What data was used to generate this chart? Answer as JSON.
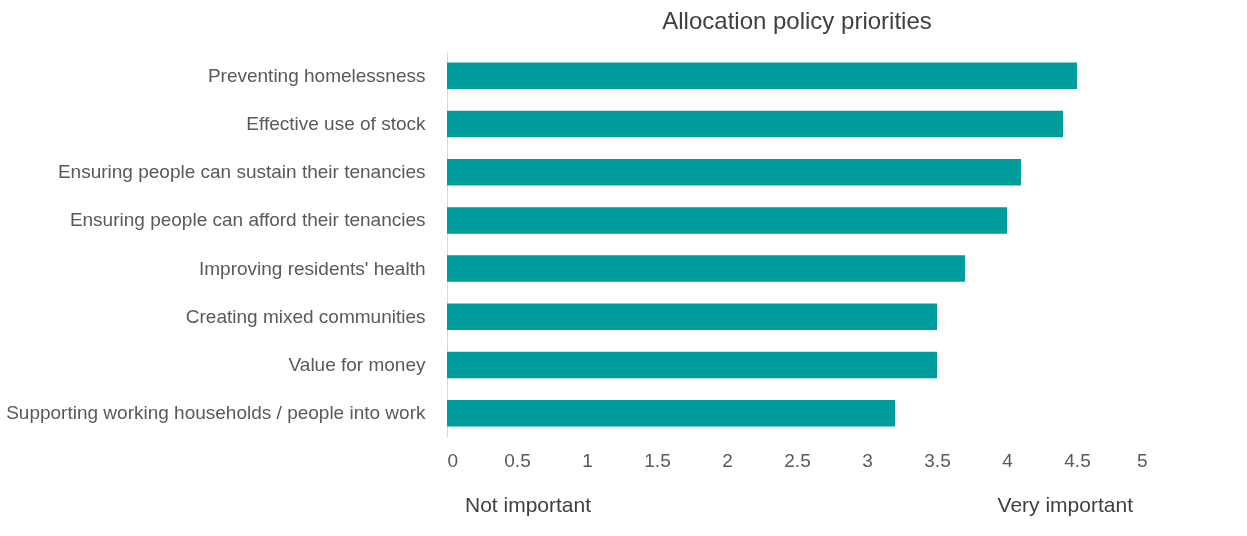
{
  "chart_data": {
    "type": "bar",
    "orientation": "horizontal",
    "title": "Allocation policy priorities",
    "categories": [
      "Preventing homelessness",
      "Effective use of stock",
      "Ensuring people  can sustain their tenancies",
      "Ensuring people can afford their tenancies",
      "Improving residents' health",
      "Creating mixed communities",
      "Value for money",
      "Supporting working households / people into work"
    ],
    "values": [
      4.5,
      4.4,
      4.1,
      4.0,
      3.7,
      3.5,
      3.5,
      3.2
    ],
    "color": "#009b9b",
    "xlim": [
      0,
      5
    ],
    "xticks": [
      0,
      0.5,
      1,
      1.5,
      2,
      2.5,
      3,
      3.5,
      4,
      4.5,
      5
    ],
    "grid": false,
    "annotations": [
      "Not important",
      "Very important"
    ]
  }
}
